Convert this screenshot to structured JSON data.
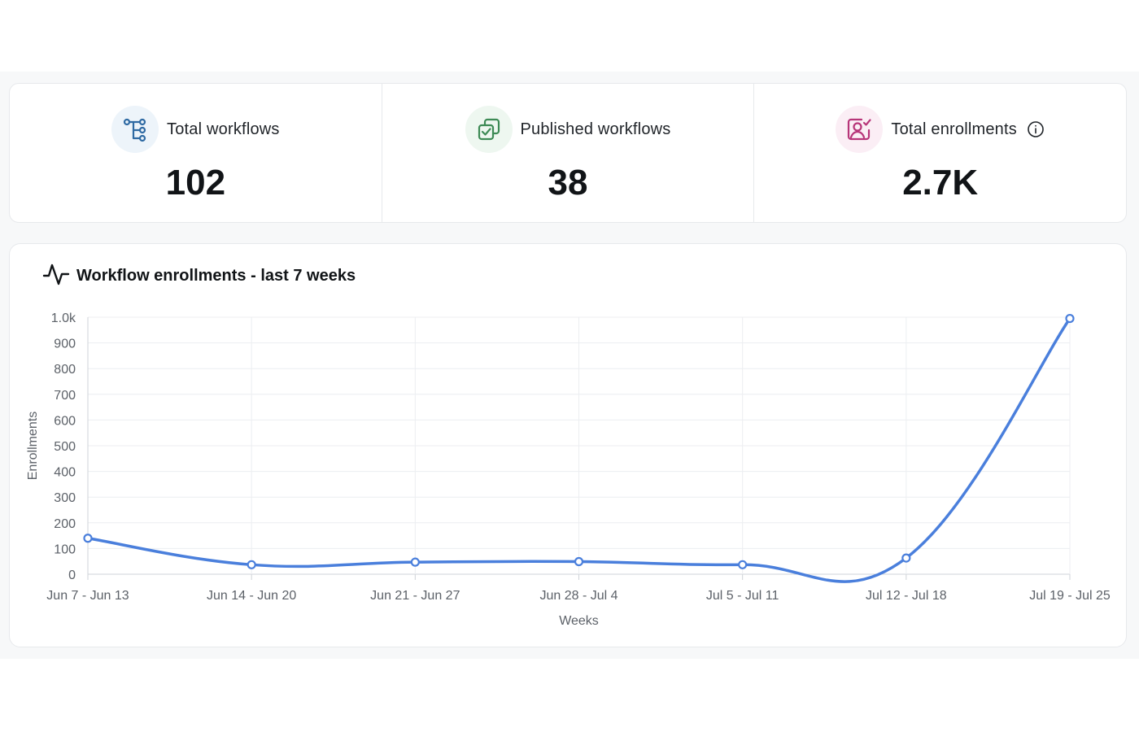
{
  "stats": [
    {
      "label": "Total workflows",
      "value": "102",
      "icon": "workflow-tree-icon",
      "icon_color": "#2f6aa3",
      "icon_bg": "#edf4fa",
      "info": false
    },
    {
      "label": "Published workflows",
      "value": "38",
      "icon": "published-check-icon",
      "icon_color": "#3d8a55",
      "icon_bg": "#eef7f0",
      "info": false
    },
    {
      "label": "Total enrollments",
      "value": "2.7K",
      "icon": "enrollment-user-icon",
      "icon_color": "#b73579",
      "icon_bg": "#fbeef5",
      "info": true
    }
  ],
  "chart_data": {
    "type": "line",
    "title": "Workflow enrollments - last 7 weeks",
    "xlabel": "Weeks",
    "ylabel": "Enrollments",
    "categories": [
      "Jun 7 - Jun 13",
      "Jun 14 - Jun 20",
      "Jun 21 - Jun 27",
      "Jun 28 - Jul 4",
      "Jul 5 - Jul 11",
      "Jul 12 - Jul 18",
      "Jul 19 - Jul 25"
    ],
    "series": [
      {
        "values": [
          140,
          37,
          47,
          49,
          37,
          63,
          995
        ],
        "color": "#4a7fdc"
      }
    ],
    "ylim": [
      0,
      1000
    ],
    "yticks": [
      "0",
      "100",
      "200",
      "300",
      "400",
      "500",
      "600",
      "700",
      "800",
      "900",
      "1.0k"
    ],
    "grid": true,
    "legend": "none",
    "curve": "smooth"
  }
}
